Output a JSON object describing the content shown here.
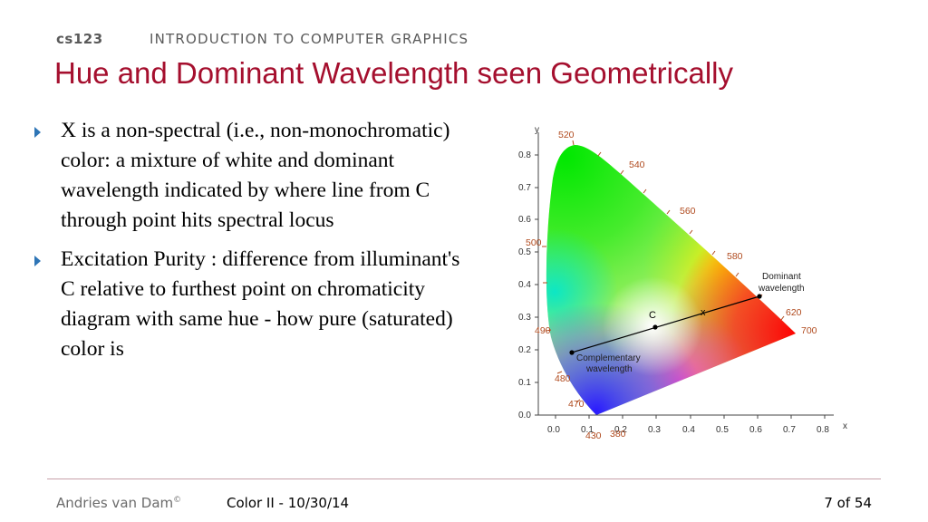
{
  "header": {
    "course_code": "cs123",
    "course_title": "INTRODUCTION TO COMPUTER GRAPHICS"
  },
  "slide": {
    "title": "Hue and Dominant Wavelength seen Geometrically",
    "bullets": [
      "X is a non-spectral (i.e., non-monochromatic) color: a mixture of white and dominant wavelength indicated by where line from C through  point hits spectral locus",
      "Excitation Purity : difference from illuminant's C relative to furthest point on chromaticity diagram with same hue - how pure (saturated) color is"
    ]
  },
  "diagram": {
    "x_axis_label": "x",
    "y_axis_label": "y",
    "x_ticks": [
      "0.0",
      "0.1",
      "0.2",
      "0.3",
      "0.4",
      "0.5",
      "0.6",
      "0.7",
      "0.8"
    ],
    "y_ticks": [
      "0.0",
      "0.1",
      "0.2",
      "0.3",
      "0.4",
      "0.5",
      "0.6",
      "0.7",
      "0.8"
    ],
    "wavelengths": {
      "w520": "520",
      "w540": "540",
      "w560": "560",
      "w580": "580",
      "w500": "500",
      "w490": "490",
      "w480": "480",
      "w470": "470",
      "w430": "430",
      "w380": "380",
      "w620": "620",
      "w700": "700"
    },
    "point_c": "C",
    "point_x": "x",
    "dominant_label_1": "Dominant",
    "dominant_label_2": "wavelength",
    "complementary_label_1": "Complementary",
    "complementary_label_2": "wavelength",
    "colors": {
      "title": "#a50f2e",
      "bullet": "#2e75b6",
      "wavelength_label": "#b04a1e"
    }
  },
  "footer": {
    "author": "Andries van Dam",
    "copyright": "©",
    "lecture": "Color II - 10/30/14",
    "page": "7 of 54"
  }
}
